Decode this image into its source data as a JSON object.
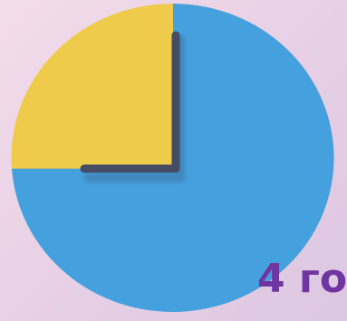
{
  "caption": "4 го",
  "colors": {
    "background": "#ead3e6",
    "main_sector": "#45a0de",
    "quarter_sector": "#eecb4b",
    "clock_hands": "#454c63",
    "caption": "#6f35a0"
  },
  "icons": {
    "clock": "clock-icon"
  },
  "clock": {
    "shaded_fraction": 0.25
  }
}
